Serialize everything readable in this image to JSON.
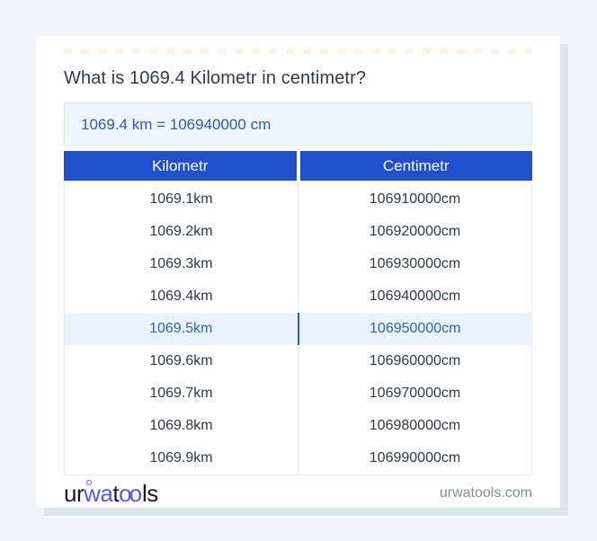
{
  "page": {
    "title": "What is 1069.4 Kilometr in centimetr?",
    "answer": "1069.4 km = 106940000 cm"
  },
  "table": {
    "headers": [
      "Kilometr",
      "Centimetr"
    ],
    "rows": [
      {
        "km": "1069.1km",
        "cm": "106910000cm",
        "highlight": false
      },
      {
        "km": "1069.2km",
        "cm": "106920000cm",
        "highlight": false
      },
      {
        "km": "1069.3km",
        "cm": "106930000cm",
        "highlight": false
      },
      {
        "km": "1069.4km",
        "cm": "106940000cm",
        "highlight": false
      },
      {
        "km": "1069.5km",
        "cm": "106950000cm",
        "highlight": true
      },
      {
        "km": "1069.6km",
        "cm": "106960000cm",
        "highlight": false
      },
      {
        "km": "1069.7km",
        "cm": "106970000cm",
        "highlight": false
      },
      {
        "km": "1069.8km",
        "cm": "106980000cm",
        "highlight": false
      },
      {
        "km": "1069.9km",
        "cm": "106990000cm",
        "highlight": false
      }
    ]
  },
  "footer": {
    "logo": {
      "part_ur": "ur",
      "part_wa": "wa",
      "part_t": "t",
      "part_oo": "oo",
      "part_ls": "ls"
    },
    "site_url": "urwatools.com"
  },
  "colors": {
    "page_bg": "#f1f4f9",
    "header_blue": "#2150ce",
    "answer_bg": "#eef6fd",
    "answer_text": "#2a5ac3",
    "highlight_bg": "#e9f2fd",
    "highlight_text": "#2e62c6",
    "logo_blue": "#5357ee",
    "title_text": "#2e3a4e"
  }
}
